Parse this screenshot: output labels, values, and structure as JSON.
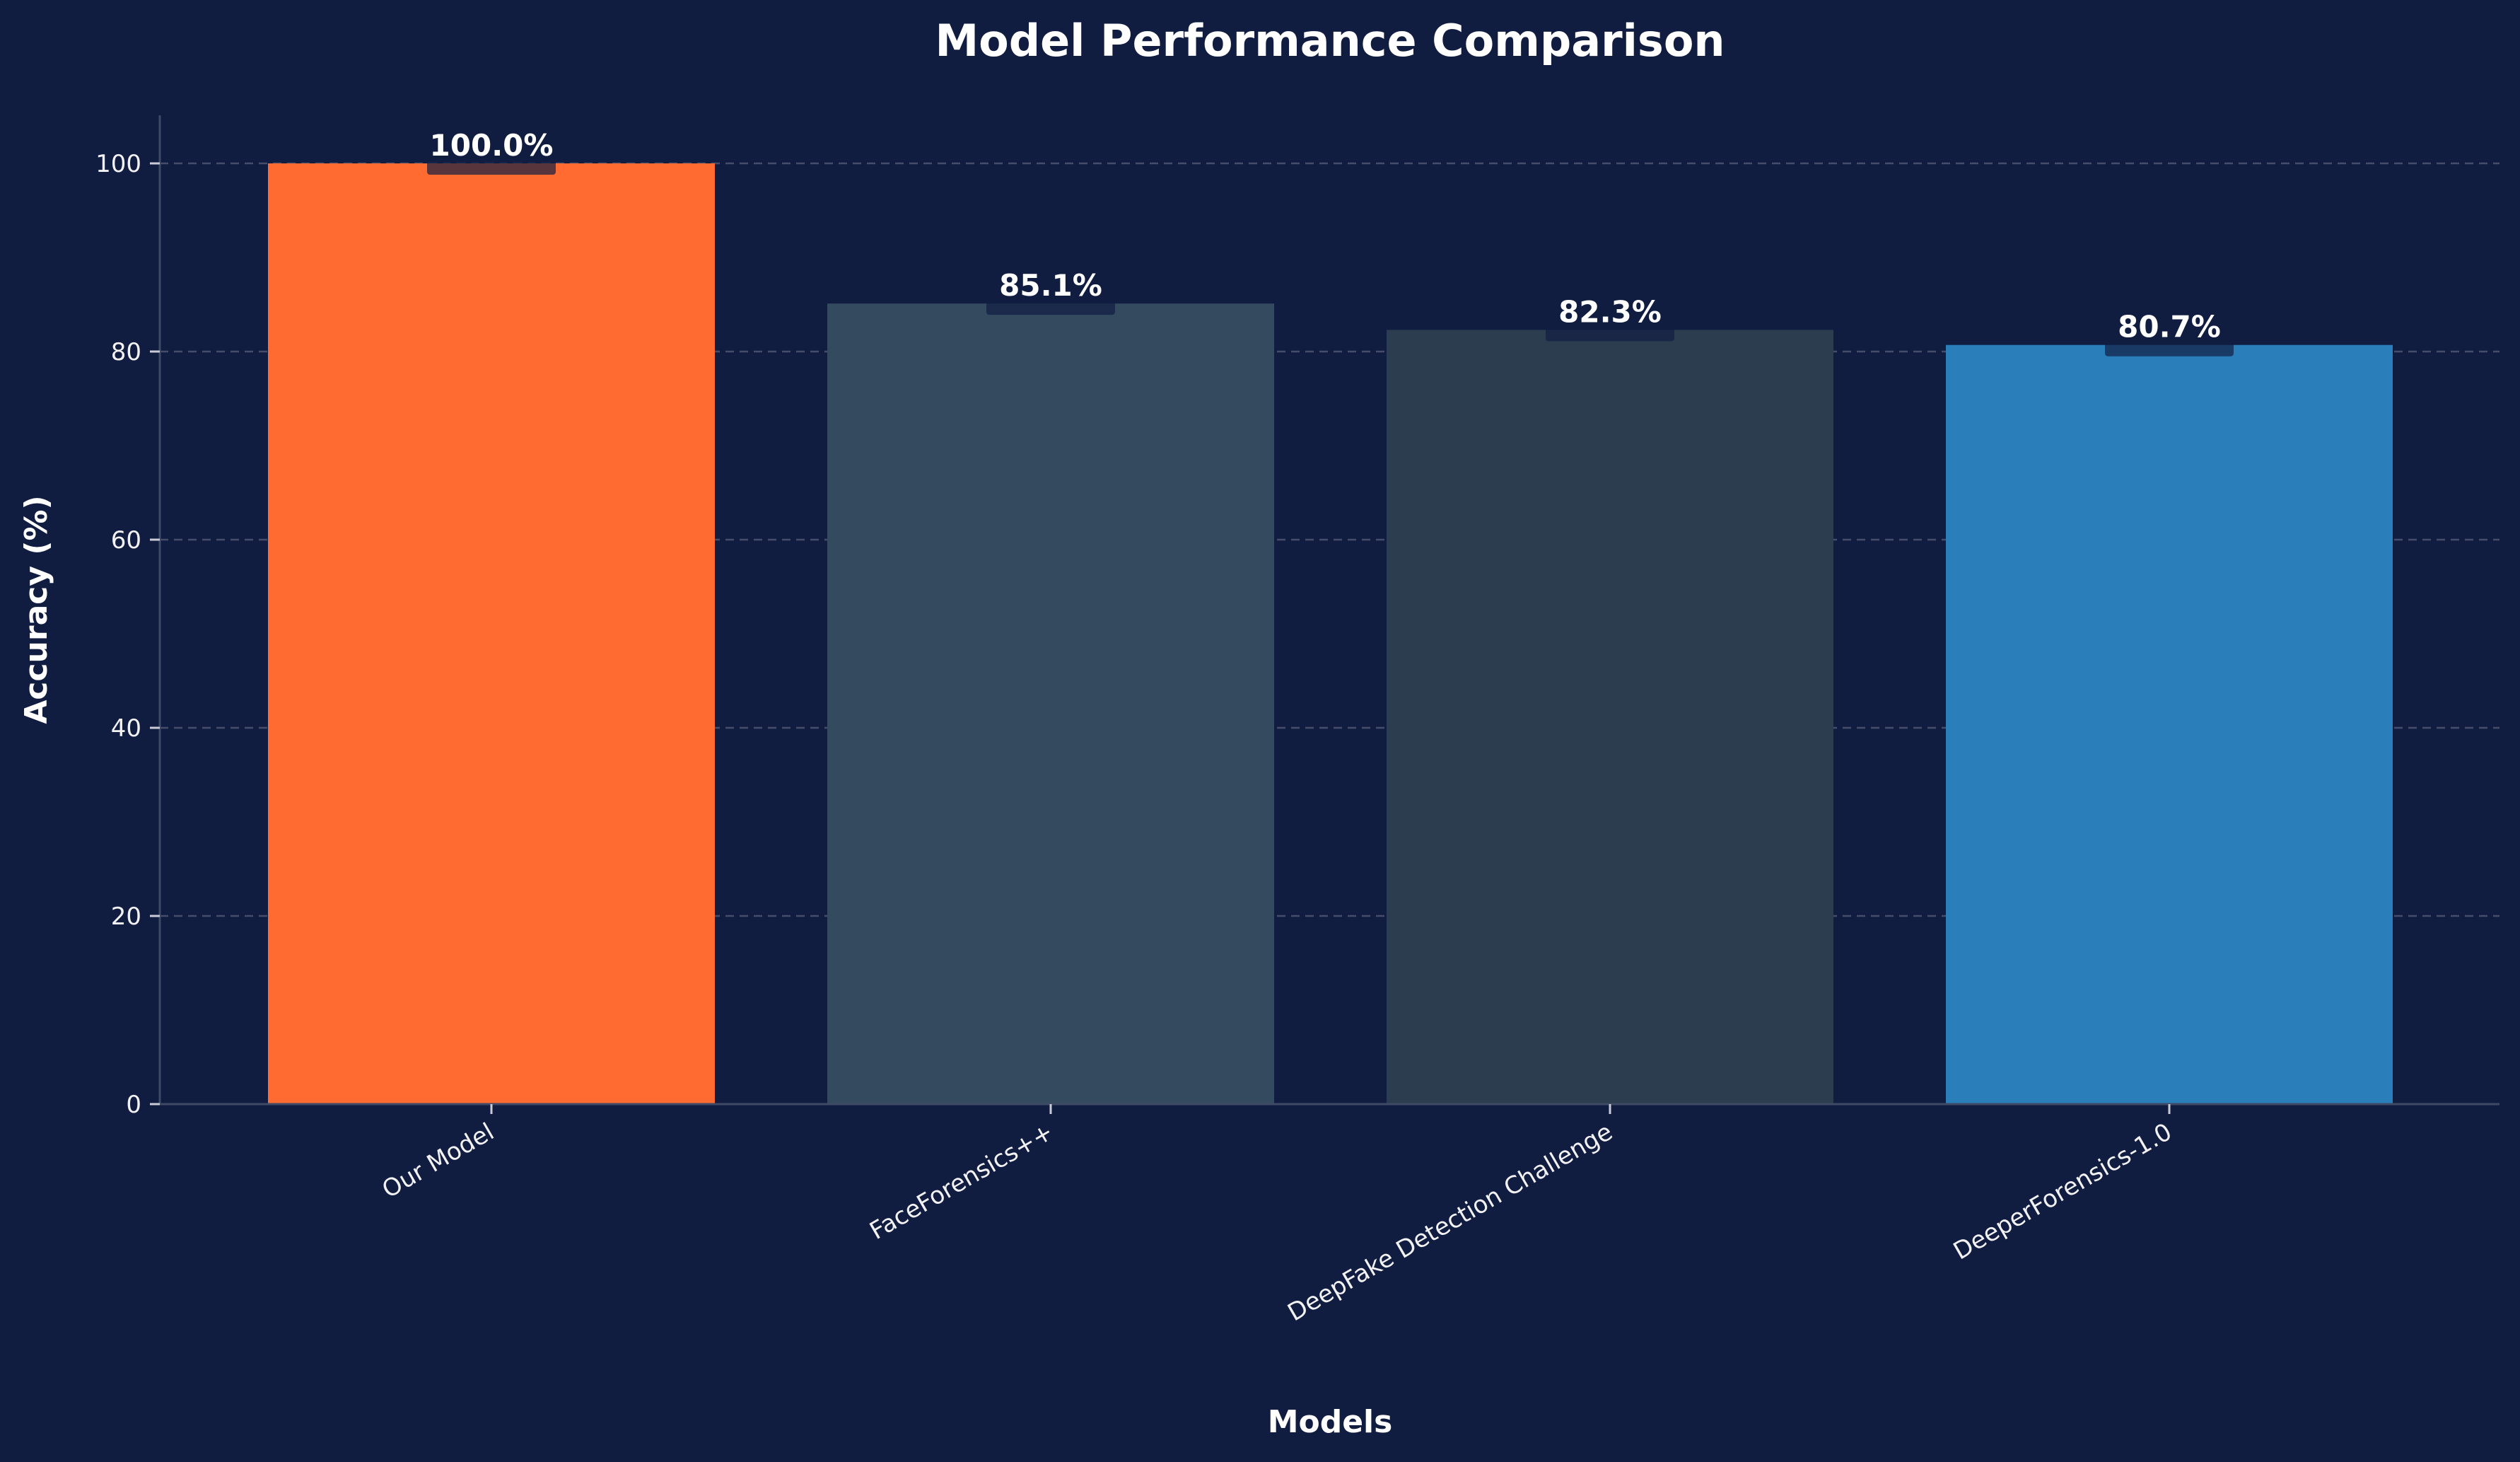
{
  "chart_data": {
    "type": "bar",
    "title": "Model Performance Comparison",
    "xlabel": "Models",
    "ylabel": "Accuracy (%)",
    "categories": [
      "Our Model",
      "FaceForensics++",
      "DeepFake Detection Challenge",
      "DeeperForensics-1.0"
    ],
    "values": [
      100.0,
      85.1,
      82.3,
      80.7
    ],
    "value_labels": [
      "100.0%",
      "85.1%",
      "82.3%",
      "80.7%"
    ],
    "colors": [
      "#ff6b31",
      "#344a5f",
      "#2c3d50",
      "#2a7fba"
    ],
    "ylim": [
      0,
      105
    ],
    "yticks": [
      0,
      20,
      40,
      60,
      80,
      100
    ],
    "grid": true,
    "legend": "none"
  }
}
